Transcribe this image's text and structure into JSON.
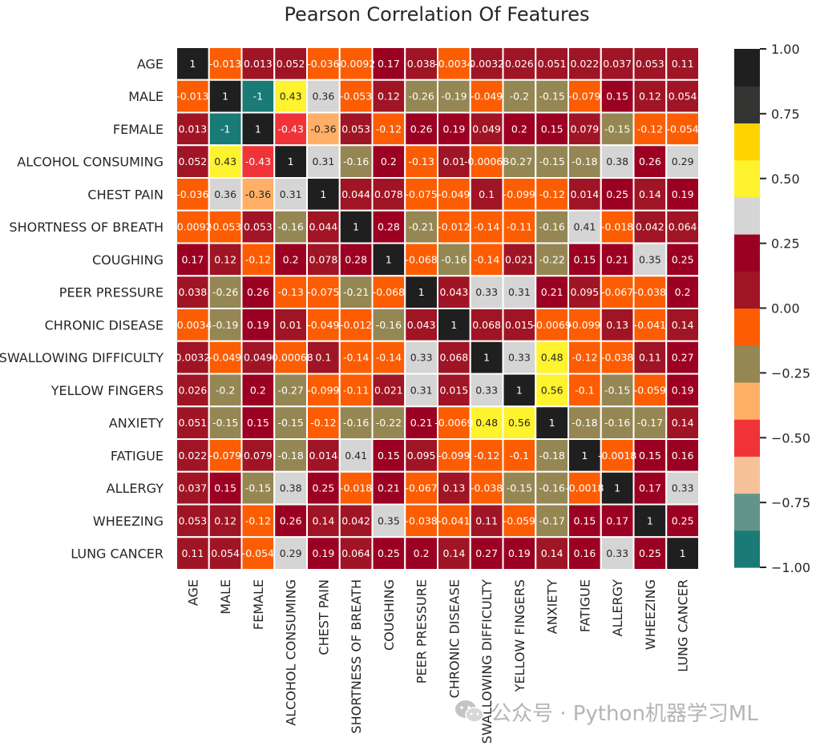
{
  "chart_data": {
    "type": "heatmap",
    "title": "Pearson Correlation Of Features",
    "xlabel": "",
    "ylabel": "",
    "rows": [
      "AGE",
      "MALE",
      "FEMALE",
      "ALCOHOL CONSUMING",
      "CHEST PAIN",
      "SHORTNESS OF BREATH",
      "COUGHING",
      "PEER PRESSURE",
      "CHRONIC DISEASE",
      "SWALLOWING DIFFICULTY",
      "YELLOW FINGERS",
      "ANXIETY",
      "FATIGUE",
      "ALLERGY",
      "WHEEZING",
      "LUNG CANCER"
    ],
    "columns": [
      "AGE",
      "MALE",
      "FEMALE",
      "ALCOHOL CONSUMING",
      "CHEST PAIN",
      "SHORTNESS OF BREATH",
      "COUGHING",
      "PEER PRESSURE",
      "CHRONIC DISEASE",
      "SWALLOWING DIFFICULTY",
      "YELLOW FINGERS",
      "ANXIETY",
      "FATIGUE",
      "ALLERGY",
      "WHEEZING",
      "LUNG CANCER"
    ],
    "values": [
      [
        1,
        -0.013,
        0.013,
        0.052,
        -0.036,
        -0.0092,
        0.17,
        0.038,
        -0.0034,
        0.0032,
        0.026,
        0.051,
        0.022,
        0.037,
        0.053,
        0.11
      ],
      [
        -0.013,
        1,
        -1,
        0.43,
        0.36,
        -0.053,
        0.12,
        -0.26,
        -0.19,
        -0.049,
        -0.2,
        -0.15,
        -0.079,
        0.15,
        0.12,
        0.054
      ],
      [
        0.013,
        -1,
        1,
        -0.43,
        -0.36,
        0.053,
        -0.12,
        0.26,
        0.19,
        0.049,
        0.2,
        0.15,
        0.079,
        -0.15,
        -0.12,
        -0.054
      ],
      [
        0.052,
        0.43,
        -0.43,
        1,
        0.31,
        -0.16,
        0.2,
        -0.13,
        0.01,
        -0.00068,
        -0.27,
        -0.15,
        -0.18,
        0.38,
        0.26,
        0.29
      ],
      [
        -0.036,
        0.36,
        -0.36,
        0.31,
        1,
        0.044,
        0.078,
        -0.075,
        -0.049,
        0.1,
        -0.099,
        -0.12,
        0.014,
        0.25,
        0.14,
        0.19
      ],
      [
        -0.0092,
        -0.053,
        0.053,
        -0.16,
        0.044,
        1,
        0.28,
        -0.21,
        -0.012,
        -0.14,
        -0.11,
        -0.16,
        0.41,
        -0.018,
        0.042,
        0.064
      ],
      [
        0.17,
        0.12,
        -0.12,
        0.2,
        0.078,
        0.28,
        1,
        -0.068,
        -0.16,
        -0.14,
        0.021,
        -0.22,
        0.15,
        0.21,
        0.35,
        0.25
      ],
      [
        0.038,
        -0.26,
        0.26,
        -0.13,
        -0.075,
        -0.21,
        -0.068,
        1,
        0.043,
        0.33,
        0.31,
        0.21,
        0.095,
        -0.067,
        -0.038,
        0.2
      ],
      [
        -0.0034,
        -0.19,
        0.19,
        0.01,
        -0.049,
        -0.012,
        -0.16,
        0.043,
        1,
        0.068,
        0.015,
        -0.0069,
        -0.099,
        0.13,
        -0.041,
        0.14
      ],
      [
        0.0032,
        -0.049,
        0.049,
        -0.00068,
        0.1,
        -0.14,
        -0.14,
        0.33,
        0.068,
        1,
        0.33,
        0.48,
        -0.12,
        -0.038,
        0.11,
        0.27
      ],
      [
        0.026,
        -0.2,
        0.2,
        -0.27,
        -0.099,
        -0.11,
        0.021,
        0.31,
        0.015,
        0.33,
        1,
        0.56,
        -0.1,
        -0.15,
        -0.059,
        0.19
      ],
      [
        0.051,
        -0.15,
        0.15,
        -0.15,
        -0.12,
        -0.16,
        -0.22,
        0.21,
        -0.0069,
        0.48,
        0.56,
        1,
        -0.18,
        -0.16,
        -0.17,
        0.14
      ],
      [
        0.022,
        -0.079,
        0.079,
        -0.18,
        0.014,
        0.41,
        0.15,
        0.095,
        -0.099,
        -0.12,
        -0.1,
        -0.18,
        1,
        -0.0018,
        0.15,
        0.16
      ],
      [
        0.037,
        0.15,
        -0.15,
        0.38,
        0.25,
        -0.018,
        0.21,
        -0.067,
        0.13,
        -0.038,
        -0.15,
        -0.16,
        -0.0018,
        1,
        0.17,
        0.33
      ],
      [
        0.053,
        0.12,
        -0.12,
        0.26,
        0.14,
        0.042,
        0.35,
        -0.038,
        -0.041,
        0.11,
        -0.059,
        -0.17,
        0.15,
        0.17,
        1,
        0.25
      ],
      [
        0.11,
        0.054,
        -0.054,
        0.29,
        0.19,
        0.064,
        0.25,
        0.2,
        0.14,
        0.27,
        0.19,
        0.14,
        0.16,
        0.33,
        0.25,
        1
      ]
    ],
    "labels": [
      [
        "1",
        "-0.013",
        "0.013",
        "0.052",
        "-0.036",
        "-0.0092",
        "0.17",
        "0.038",
        "-0.0034",
        "0.0032",
        "0.026",
        "0.051",
        "0.022",
        "0.037",
        "0.053",
        "0.11"
      ],
      [
        "-0.013",
        "1",
        "-1",
        "0.43",
        "0.36",
        "-0.053",
        "0.12",
        "-0.26",
        "-0.19",
        "-0.049",
        "-0.2",
        "-0.15",
        "-0.079",
        "0.15",
        "0.12",
        "0.054"
      ],
      [
        "0.013",
        "-1",
        "1",
        "-0.43",
        "-0.36",
        "0.053",
        "-0.12",
        "0.26",
        "0.19",
        "0.049",
        "0.2",
        "0.15",
        "0.079",
        "-0.15",
        "-0.12",
        "-0.054"
      ],
      [
        "0.052",
        "0.43",
        "-0.43",
        "1",
        "0.31",
        "-0.16",
        "0.2",
        "-0.13",
        "0.01",
        "-0.00068",
        "-0.27",
        "-0.15",
        "-0.18",
        "0.38",
        "0.26",
        "0.29"
      ],
      [
        "-0.036",
        "0.36",
        "-0.36",
        "0.31",
        "1",
        "0.044",
        "0.078",
        "-0.075",
        "-0.049",
        "0.1",
        "-0.099",
        "-0.12",
        "0.014",
        "0.25",
        "0.14",
        "0.19"
      ],
      [
        "-0.0092",
        "-0.053",
        "0.053",
        "-0.16",
        "0.044",
        "1",
        "0.28",
        "-0.21",
        "-0.012",
        "-0.14",
        "-0.11",
        "-0.16",
        "0.41",
        "-0.018",
        "0.042",
        "0.064"
      ],
      [
        "0.17",
        "0.12",
        "-0.12",
        "0.2",
        "0.078",
        "0.28",
        "1",
        "-0.068",
        "-0.16",
        "-0.14",
        "0.021",
        "-0.22",
        "0.15",
        "0.21",
        "0.35",
        "0.25"
      ],
      [
        "0.038",
        "-0.26",
        "0.26",
        "-0.13",
        "-0.075",
        "-0.21",
        "-0.068",
        "1",
        "0.043",
        "0.33",
        "0.31",
        "0.21",
        "0.095",
        "-0.067",
        "-0.038",
        "0.2"
      ],
      [
        "-0.0034",
        "-0.19",
        "0.19",
        "0.01",
        "-0.049",
        "-0.012",
        "-0.16",
        "0.043",
        "1",
        "0.068",
        "0.015",
        "-0.0069",
        "-0.099",
        "0.13",
        "-0.041",
        "0.14"
      ],
      [
        "0.0032",
        "-0.049",
        "0.049",
        "-0.00068",
        "0.1",
        "-0.14",
        "-0.14",
        "0.33",
        "0.068",
        "1",
        "0.33",
        "0.48",
        "-0.12",
        "-0.038",
        "0.11",
        "0.27"
      ],
      [
        "0.026",
        "-0.2",
        "0.2",
        "-0.27",
        "-0.099",
        "-0.11",
        "0.021",
        "0.31",
        "0.015",
        "0.33",
        "1",
        "0.56",
        "-0.1",
        "-0.15",
        "-0.059",
        "0.19"
      ],
      [
        "0.051",
        "-0.15",
        "0.15",
        "-0.15",
        "-0.12",
        "-0.16",
        "-0.22",
        "0.21",
        "-0.0069",
        "0.48",
        "0.56",
        "1",
        "-0.18",
        "-0.16",
        "-0.17",
        "0.14"
      ],
      [
        "0.022",
        "-0.079",
        "0.079",
        "-0.18",
        "0.014",
        "0.41",
        "0.15",
        "0.095",
        "-0.099",
        "-0.12",
        "-0.1",
        "-0.18",
        "1",
        "-0.0018",
        "0.15",
        "0.16"
      ],
      [
        "0.037",
        "0.15",
        "-0.15",
        "0.38",
        "0.25",
        "-0.018",
        "0.21",
        "-0.067",
        "0.13",
        "-0.038",
        "-0.15",
        "-0.16",
        "-0.0018",
        "1",
        "0.17",
        "0.33"
      ],
      [
        "0.053",
        "0.12",
        "-0.12",
        "0.26",
        "0.14",
        "0.042",
        "0.35",
        "-0.038",
        "-0.041",
        "0.11",
        "-0.059",
        "-0.17",
        "0.15",
        "0.17",
        "1",
        "0.25"
      ],
      [
        "0.11",
        "0.054",
        "-0.054",
        "0.29",
        "0.19",
        "0.064",
        "0.25",
        "0.2",
        "0.14",
        "0.27",
        "0.19",
        "0.14",
        "0.16",
        "0.33",
        "0.25",
        "1"
      ]
    ],
    "colorbar": {
      "vmin": -1,
      "vmax": 1,
      "colors": [
        "#1a7a75",
        "#62958a",
        "#f5c29a",
        "#f03338",
        "#ffb066",
        "#948753",
        "#fc5d02",
        "#a01525",
        "#9b0023",
        "#d5d5d5",
        "#fff22e",
        "#ffd300",
        "#343533",
        "#1f1f1f"
      ],
      "ticks": [
        -1,
        -0.75,
        -0.5,
        -0.25,
        0,
        0.25,
        0.5,
        0.75,
        1
      ],
      "tick_labels": [
        "−1.00",
        "−0.75",
        "−0.50",
        "−0.25",
        "0.00",
        "0.25",
        "0.50",
        "0.75",
        "1.00"
      ]
    },
    "grid_line_color": "#ffffff",
    "dark_text_color": "#262626",
    "light_text_color": "#ffffff"
  },
  "watermark": {
    "text": "公众号 · Python机器学习ML",
    "icon": "wechat-icon"
  }
}
